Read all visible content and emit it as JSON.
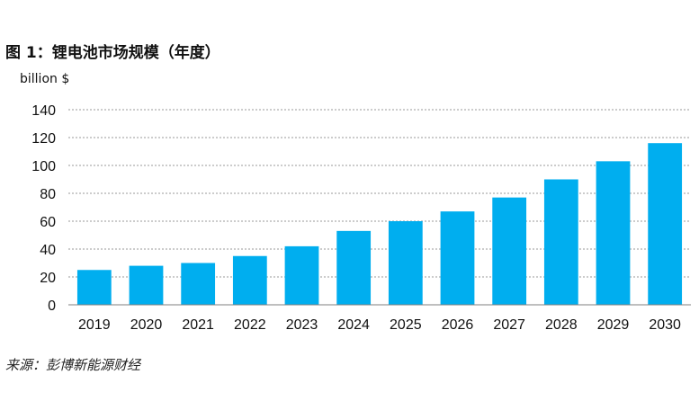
{
  "figure": {
    "title": "图 1：锂电池市场规模（年度）",
    "source": "来源：彭博新能源财经"
  },
  "chart_data": {
    "type": "bar",
    "title": "",
    "xlabel": "",
    "ylabel": "billion $",
    "categories": [
      "2019",
      "2020",
      "2021",
      "2022",
      "2023",
      "2024",
      "2025",
      "2026",
      "2027",
      "2028",
      "2029",
      "2030"
    ],
    "values": [
      25,
      28,
      30,
      35,
      42,
      53,
      60,
      67,
      77,
      90,
      103,
      116
    ],
    "ylim": [
      0,
      140
    ],
    "yticks": [
      0,
      20,
      40,
      60,
      80,
      100,
      120,
      140
    ],
    "grid": "horizontal dashed",
    "legend": "none",
    "bar_color": "#00aeef"
  }
}
